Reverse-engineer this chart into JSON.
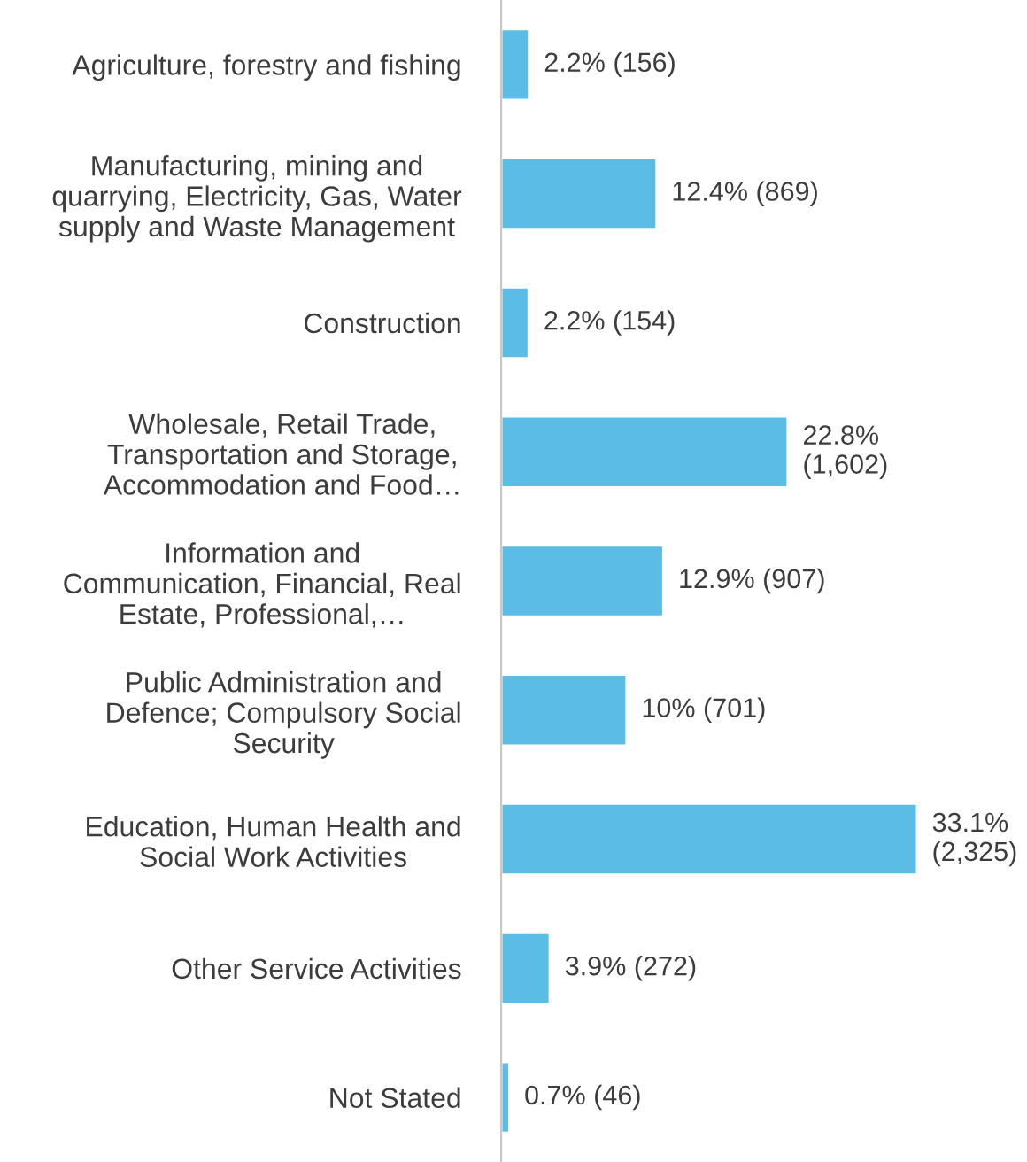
{
  "chart_data": {
    "type": "bar",
    "orientation": "horizontal",
    "categories": [
      "Agriculture, forestry and fishing",
      "Manufacturing, mining and\nquarrying, Electricity, Gas, Water\nsupply and Waste Management",
      "Construction",
      "Wholesale, Retail Trade,\nTransportation and Storage,\nAccommodation and Food…",
      "Information and\nCommunication, Financial, Real\nEstate, Professional,…",
      "Public Administration and\nDefence; Compulsory Social\nSecurity",
      "Education, Human Health and\nSocial Work Activities",
      "Other Service Activities",
      "Not Stated"
    ],
    "values": [
      156,
      869,
      154,
      1602,
      907,
      701,
      2325,
      272,
      46
    ],
    "value_labels": [
      "2.2% (156)",
      "12.4% (869)",
      "2.2% (154)",
      "22.8%\n(1,602)",
      "12.9% (907)",
      "10% (701)",
      "33.1%\n(2,325)",
      "3.9% (272)",
      "0.7% (46)"
    ],
    "color": "#5bbce6",
    "grid": false,
    "legend": false
  }
}
